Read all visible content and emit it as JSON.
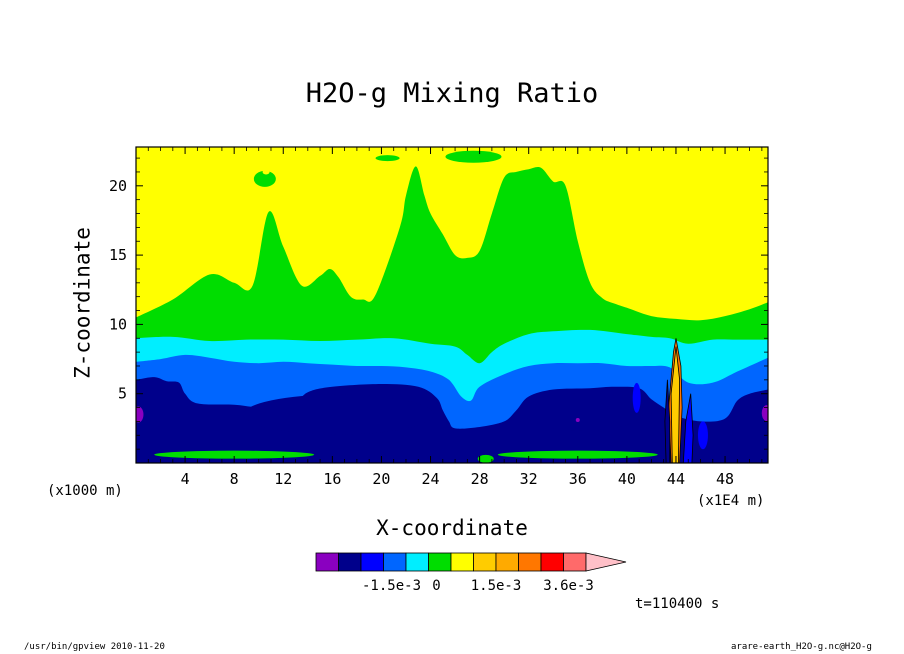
{
  "chart_data": {
    "type": "contour",
    "title": "H2O-g Mixing Ratio",
    "xlabel": "X-coordinate",
    "ylabel": "Z-coordinate",
    "x_unit_left": "(x1000 m)",
    "x_unit_right": "(x1E4 m)",
    "xlim": [
      0,
      51.5
    ],
    "ylim": [
      0,
      22.8
    ],
    "x_ticks": [
      4,
      8,
      12,
      16,
      20,
      24,
      28,
      32,
      36,
      40,
      44,
      48
    ],
    "x_tick_labels": [
      "4",
      "8",
      "12",
      "16",
      "20",
      "24",
      "28",
      "32",
      "36",
      "40",
      "44",
      "48"
    ],
    "y_ticks": [
      5,
      10,
      15,
      20
    ],
    "y_tick_labels": [
      "5",
      "10",
      "15",
      "20"
    ],
    "time_label": "t=110400 s",
    "colorbar": {
      "labels": [
        "-1.5e-3",
        "0",
        "1.5e-3",
        "3.6e-3"
      ],
      "colors": [
        "#8a00c0",
        "#00008b",
        "#0000ff",
        "#0066ff",
        "#00eeff",
        "#00dd00",
        "#ffff00",
        "#ffcc00",
        "#ffaa00",
        "#ff7700",
        "#ff0000",
        "#ff6a6a",
        "#ffc0c8"
      ]
    },
    "bands": {
      "green": [
        [
          0,
          10.5
        ],
        [
          3,
          11.8
        ],
        [
          6,
          13.6
        ],
        [
          8,
          13.0
        ],
        [
          9.5,
          12.8
        ],
        [
          10.8,
          18.1
        ],
        [
          12,
          15.6
        ],
        [
          13.5,
          12.8
        ],
        [
          15,
          13.5
        ],
        [
          15.8,
          14
        ],
        [
          16.5,
          13.4
        ],
        [
          17.5,
          12
        ],
        [
          18.5,
          11.8
        ],
        [
          19.5,
          12.1
        ],
        [
          21.5,
          17
        ],
        [
          22,
          19.3
        ],
        [
          22.8,
          21.4
        ],
        [
          23.5,
          19.3
        ],
        [
          24,
          18
        ],
        [
          25,
          16.5
        ],
        [
          26,
          15
        ],
        [
          27,
          14.8
        ],
        [
          28,
          15.3
        ],
        [
          29,
          18
        ],
        [
          30,
          20.6
        ],
        [
          31,
          21
        ],
        [
          32,
          21.2
        ],
        [
          33,
          21.3
        ],
        [
          34,
          20.3
        ],
        [
          35,
          20
        ],
        [
          36,
          16
        ],
        [
          37,
          13
        ],
        [
          38,
          11.9
        ],
        [
          39,
          11.5
        ],
        [
          40,
          11.2
        ],
        [
          42,
          10.6
        ],
        [
          44,
          10.4
        ],
        [
          46,
          10.3
        ],
        [
          48,
          10.6
        ],
        [
          50,
          11.1
        ],
        [
          51.5,
          11.6
        ]
      ],
      "cyan": [
        [
          0,
          9
        ],
        [
          3,
          9.1
        ],
        [
          6,
          8.8
        ],
        [
          9,
          8.9
        ],
        [
          12,
          8.9
        ],
        [
          15,
          8.8
        ],
        [
          18,
          8.9
        ],
        [
          21,
          9.0
        ],
        [
          24,
          8.6
        ],
        [
          26,
          8.4
        ],
        [
          27,
          7.8
        ],
        [
          28,
          7.2
        ],
        [
          29,
          8.0
        ],
        [
          30,
          8.6
        ],
        [
          32,
          9.3
        ],
        [
          34,
          9.5
        ],
        [
          37,
          9.6
        ],
        [
          40,
          9.3
        ],
        [
          42,
          9.1
        ],
        [
          43.5,
          9.0
        ],
        [
          45,
          8.6
        ],
        [
          47,
          8.9
        ],
        [
          49,
          8.9
        ],
        [
          51.5,
          8.9
        ]
      ],
      "blue": [
        [
          0,
          7.3
        ],
        [
          2,
          7.5
        ],
        [
          4,
          7.8
        ],
        [
          6,
          7.6
        ],
        [
          8,
          7.3
        ],
        [
          10,
          7.2
        ],
        [
          12,
          7.3
        ],
        [
          14,
          7.2
        ],
        [
          16,
          7.1
        ],
        [
          18,
          7.0
        ],
        [
          20,
          7.0
        ],
        [
          22,
          6.9
        ],
        [
          24,
          6.6
        ],
        [
          25.5,
          6.0
        ],
        [
          26.5,
          4.8
        ],
        [
          27.3,
          4.5
        ],
        [
          28,
          5.5
        ],
        [
          30,
          6.4
        ],
        [
          32,
          7.0
        ],
        [
          34,
          7.2
        ],
        [
          36,
          7.2
        ],
        [
          38,
          7.2
        ],
        [
          40,
          7.0
        ],
        [
          42,
          7.0
        ],
        [
          43.5,
          6.9
        ],
        [
          45,
          5.8
        ],
        [
          47,
          5.8
        ],
        [
          49,
          6.6
        ],
        [
          51.5,
          7.6
        ]
      ],
      "navy": [
        [
          0,
          6
        ],
        [
          1.5,
          6.2
        ],
        [
          2.5,
          5.9
        ],
        [
          3.5,
          5.8
        ],
        [
          4,
          5.0
        ],
        [
          5,
          4.3
        ],
        [
          8,
          4.2
        ],
        [
          10,
          4.0
        ],
        [
          12,
          4.0
        ],
        [
          13,
          4.3
        ],
        [
          14,
          5.1
        ],
        [
          16,
          5.5
        ],
        [
          20,
          5.7
        ],
        [
          23,
          5.5
        ],
        [
          24.5,
          4.7
        ],
        [
          25,
          3.8
        ],
        [
          25.5,
          3.0
        ],
        [
          26,
          2.5
        ],
        [
          28,
          2.6
        ],
        [
          30,
          3.0
        ],
        [
          31,
          3.8
        ],
        [
          32,
          4.8
        ],
        [
          34,
          5.3
        ],
        [
          37,
          5.4
        ],
        [
          39,
          5.5
        ],
        [
          41,
          5.4
        ],
        [
          42,
          4.6
        ],
        [
          43,
          4.0
        ],
        [
          44,
          3.4
        ],
        [
          46,
          3.0
        ],
        [
          48,
          3.2
        ],
        [
          49,
          4.5
        ],
        [
          50,
          5.0
        ],
        [
          51.5,
          5.3
        ]
      ]
    }
  }
}
